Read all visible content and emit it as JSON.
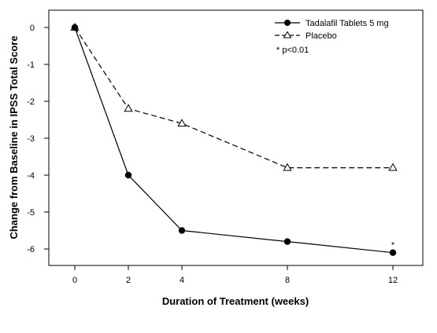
{
  "chart_data": {
    "type": "line",
    "title": "",
    "xlabel": "Duration of Treatment (weeks)",
    "ylabel": "Change from Baseline in IPSS Total Score",
    "x_ticks": [
      0,
      2,
      4,
      8,
      12
    ],
    "x_tick_labels": [
      "0",
      "2",
      "4",
      "8",
      "12"
    ],
    "y_ticks": [
      0,
      -1,
      -2,
      -3,
      -4,
      -5,
      -6
    ],
    "y_tick_labels": [
      "0",
      "-1",
      "-2",
      "-3",
      "-4",
      "-5",
      "-6"
    ],
    "ylim": [
      -6.6,
      0.2
    ],
    "grid": false,
    "legend_position": "top-right",
    "series": [
      {
        "name": "Tadalafil Tablets 5 mg",
        "marker": "filled-circle",
        "line_style": "solid",
        "x": [
          0,
          2,
          4,
          8,
          12
        ],
        "y": [
          0,
          -4.0,
          -5.5,
          -5.8,
          -6.1
        ]
      },
      {
        "name": "Placebo",
        "marker": "open-triangle",
        "line_style": "dashed",
        "x": [
          0,
          2,
          4,
          8,
          12
        ],
        "y": [
          0,
          -2.2,
          -2.6,
          -3.8,
          -3.8
        ]
      }
    ],
    "footnote": "* p<0.01",
    "annotations": [
      {
        "text": "*",
        "x": 12,
        "y": -6.1
      }
    ],
    "colors": {
      "line": "#000000",
      "background": "#ffffff"
    }
  }
}
